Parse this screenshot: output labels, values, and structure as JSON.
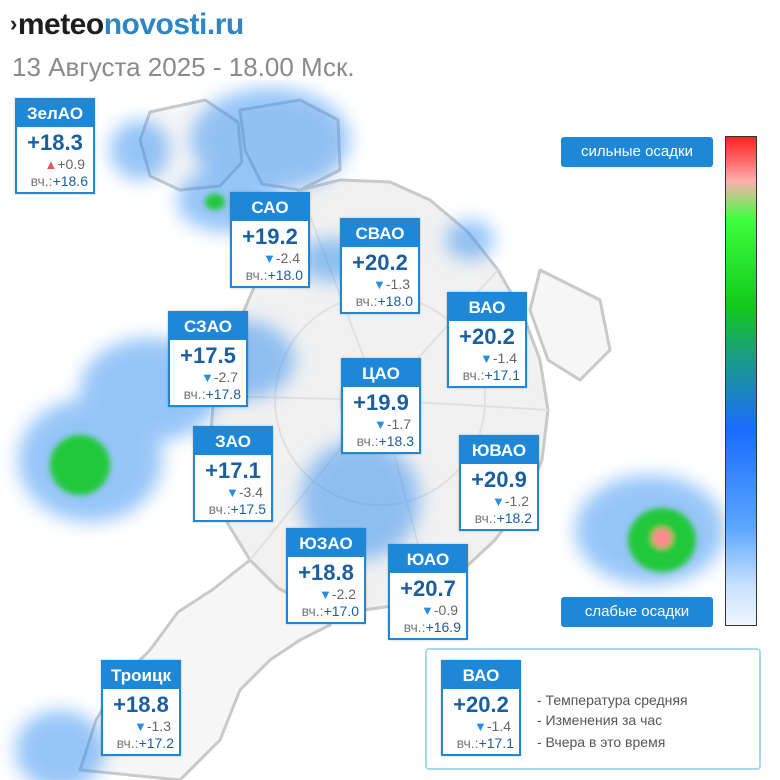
{
  "header": {
    "brand_marker": "›",
    "brand_part1": "meteo",
    "brand_part2": "novosti.ru",
    "subtitle": "13 Августа 2025 - 18.00 Мск."
  },
  "districts": [
    {
      "id": "zelao",
      "name": "ЗелАО",
      "temp": "+18.3",
      "dir": "up",
      "arrow": "▲",
      "change": "+0.9",
      "yesterday_label": "вч.:",
      "yesterday": "+18.6"
    },
    {
      "id": "sao",
      "name": "САО",
      "temp": "+19.2",
      "dir": "down",
      "arrow": "▼",
      "change": "-2.4",
      "yesterday_label": "вч.:",
      "yesterday": "+18.0"
    },
    {
      "id": "svao",
      "name": "СВАО",
      "temp": "+20.2",
      "dir": "down",
      "arrow": "▼",
      "change": "-1.3",
      "yesterday_label": "вч.:",
      "yesterday": "+18.0"
    },
    {
      "id": "szao",
      "name": "СЗАО",
      "temp": "+17.5",
      "dir": "down",
      "arrow": "▼",
      "change": "-2.7",
      "yesterday_label": "вч.:",
      "yesterday": "+17.8"
    },
    {
      "id": "vao",
      "name": "ВАО",
      "temp": "+20.2",
      "dir": "down",
      "arrow": "▼",
      "change": "-1.4",
      "yesterday_label": "вч.:",
      "yesterday": "+17.1"
    },
    {
      "id": "cao",
      "name": "ЦАО",
      "temp": "+19.9",
      "dir": "down",
      "arrow": "▼",
      "change": "-1.7",
      "yesterday_label": "вч.:",
      "yesterday": "+18.3"
    },
    {
      "id": "zao",
      "name": "ЗАО",
      "temp": "+17.1",
      "dir": "down",
      "arrow": "▼",
      "change": "-3.4",
      "yesterday_label": "вч.:",
      "yesterday": "+17.5"
    },
    {
      "id": "yuvao",
      "name": "ЮВАО",
      "temp": "+20.9",
      "dir": "down",
      "arrow": "▼",
      "change": "-1.2",
      "yesterday_label": "вч.:",
      "yesterday": "+18.2"
    },
    {
      "id": "yuzao",
      "name": "ЮЗАО",
      "temp": "+18.8",
      "dir": "down",
      "arrow": "▼",
      "change": "-2.2",
      "yesterday_label": "вч.:",
      "yesterday": "+17.0"
    },
    {
      "id": "yuao",
      "name": "ЮАО",
      "temp": "+20.7",
      "dir": "down",
      "arrow": "▼",
      "change": "-0.9",
      "yesterday_label": "вч.:",
      "yesterday": "+16.9"
    },
    {
      "id": "troitsk",
      "name": "Троицк",
      "temp": "+18.8",
      "dir": "down",
      "arrow": "▼",
      "change": "-1.3",
      "yesterday_label": "вч.:",
      "yesterday": "+17.2"
    }
  ],
  "precip_scale": {
    "top_label": "сильные осадки",
    "bottom_label": "слабые осадки",
    "colors": [
      "#ff2424",
      "#3cff3c",
      "#12c81c",
      "#1a6cff",
      "#c8e2ff"
    ]
  },
  "legend": {
    "sample": {
      "name": "ВАО",
      "temp": "+20.2",
      "dir": "down",
      "arrow": "▼",
      "change": "-1.4",
      "yesterday_label": "вч.:",
      "yesterday": "+17.1"
    },
    "line1": "- Температура средняя",
    "line2": "- Изменения за час",
    "line3": "- Вчера в это время"
  }
}
